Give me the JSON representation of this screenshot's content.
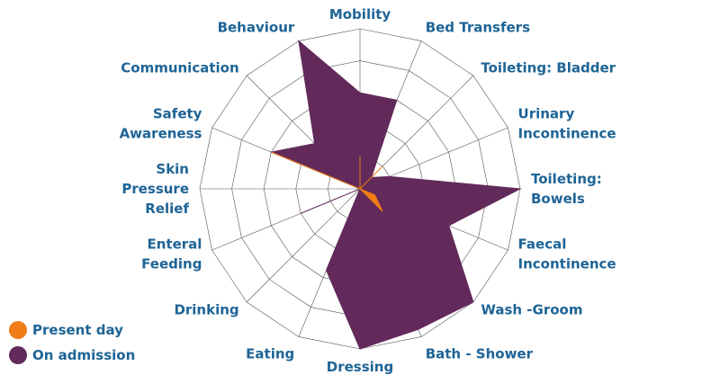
{
  "chart_data": {
    "type": "radar",
    "categories": [
      "Mobility",
      "Bed Transfers",
      "Toileting: Bladder",
      "Urinary Incontinence",
      "Toileting: Bowels",
      "Faecal Incontinence",
      "Wash -Groom",
      "Bath - Shower",
      "Dressing",
      "Eating",
      "Drinking",
      "Enteral Feeding",
      "Skin Pressure Relief",
      "Safety Awareness",
      "Communication",
      "Behaviour"
    ],
    "series": [
      {
        "name": "On admission",
        "color": "#622a5a",
        "values": [
          3,
          3,
          0.5,
          1,
          5,
          3,
          5,
          4.75,
          5,
          2.75,
          0,
          2,
          0,
          3,
          2,
          5
        ]
      },
      {
        "name": "Present day",
        "color": "#f07d17",
        "values": [
          1,
          0,
          1,
          0,
          0,
          0.5,
          1,
          0,
          0,
          0,
          0,
          0,
          0,
          3,
          0,
          0
        ]
      }
    ],
    "rlim": [
      0,
      5
    ],
    "rticks": [
      1,
      2,
      3,
      4,
      5
    ],
    "grid": true,
    "legend": "bottom-left"
  }
}
